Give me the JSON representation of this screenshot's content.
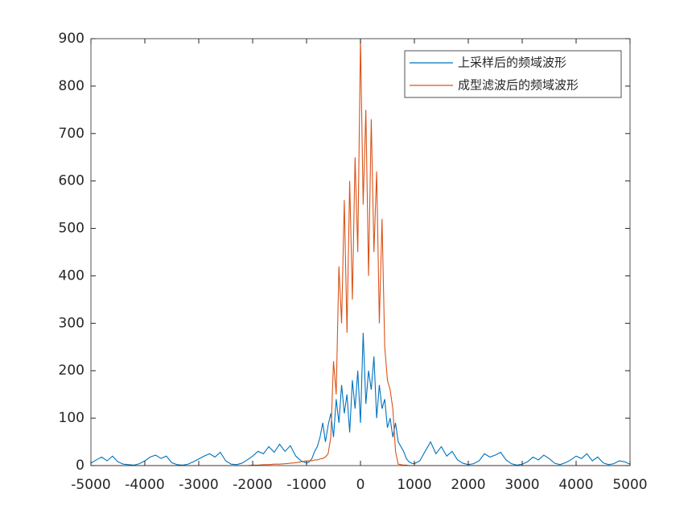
{
  "chart_data": {
    "type": "line",
    "x": [
      -5000,
      -4900,
      -4800,
      -4700,
      -4600,
      -4500,
      -4400,
      -4300,
      -4200,
      -4100,
      -4000,
      -3900,
      -3800,
      -3700,
      -3600,
      -3500,
      -3400,
      -3300,
      -3200,
      -3100,
      -3000,
      -2900,
      -2800,
      -2700,
      -2600,
      -2500,
      -2400,
      -2300,
      -2200,
      -2100,
      -2000,
      -1900,
      -1800,
      -1700,
      -1600,
      -1500,
      -1400,
      -1300,
      -1200,
      -1100,
      -1000,
      -950,
      -900,
      -850,
      -800,
      -750,
      -700,
      -650,
      -600,
      -550,
      -500,
      -450,
      -400,
      -350,
      -300,
      -250,
      -200,
      -150,
      -100,
      -50,
      0,
      50,
      100,
      150,
      200,
      250,
      300,
      350,
      400,
      450,
      500,
      550,
      600,
      650,
      700,
      750,
      800,
      850,
      900,
      950,
      1000,
      1100,
      1200,
      1300,
      1400,
      1500,
      1600,
      1700,
      1800,
      1900,
      2000,
      2100,
      2200,
      2300,
      2400,
      2500,
      2600,
      2700,
      2800,
      2900,
      3000,
      3100,
      3200,
      3300,
      3400,
      3500,
      3600,
      3700,
      3800,
      3900,
      4000,
      4100,
      4200,
      4300,
      4400,
      4500,
      4600,
      4700,
      4800,
      4900,
      5000
    ],
    "series": [
      {
        "name": "上采样后的频域波形",
        "color": "#0072BD",
        "values": [
          5,
          12,
          18,
          10,
          20,
          8,
          3,
          2,
          1,
          4,
          10,
          18,
          22,
          15,
          20,
          6,
          2,
          1,
          3,
          8,
          14,
          20,
          25,
          18,
          28,
          10,
          3,
          2,
          5,
          12,
          20,
          30,
          25,
          40,
          28,
          45,
          30,
          42,
          20,
          10,
          5,
          8,
          15,
          30,
          40,
          60,
          90,
          50,
          85,
          110,
          60,
          140,
          90,
          170,
          110,
          150,
          70,
          180,
          120,
          200,
          90,
          280,
          130,
          200,
          160,
          230,
          100,
          170,
          120,
          140,
          80,
          100,
          60,
          90,
          50,
          40,
          30,
          15,
          8,
          5,
          4,
          10,
          30,
          50,
          25,
          40,
          20,
          30,
          12,
          5,
          2,
          4,
          10,
          25,
          18,
          22,
          28,
          12,
          4,
          1,
          3,
          8,
          18,
          12,
          22,
          15,
          5,
          2,
          6,
          12,
          20,
          15,
          25,
          10,
          18,
          6,
          2,
          4,
          10,
          8,
          3
        ]
      },
      {
        "name": "成型滤波后的频域波形",
        "color": "#D95319",
        "values": [
          0,
          0,
          0,
          0,
          0,
          0,
          0,
          0,
          0,
          0,
          0,
          0,
          0,
          0,
          0,
          0,
          0,
          0,
          0,
          0,
          0,
          0,
          0,
          0,
          0,
          0,
          0,
          0,
          0,
          0,
          1,
          1,
          2,
          2,
          3,
          3,
          4,
          5,
          6,
          8,
          10,
          10,
          10,
          12,
          12,
          14,
          15,
          18,
          25,
          60,
          220,
          150,
          420,
          300,
          560,
          280,
          600,
          350,
          650,
          450,
          900,
          550,
          750,
          400,
          730,
          450,
          620,
          300,
          520,
          250,
          180,
          160,
          120,
          30,
          3,
          2,
          1,
          1,
          0,
          0,
          0,
          0,
          0,
          0,
          0,
          0,
          0,
          0,
          0,
          0,
          0,
          0,
          0,
          0,
          0,
          0,
          0,
          0,
          0,
          0,
          0,
          0,
          0,
          0,
          0,
          0,
          0,
          0,
          0,
          0,
          0,
          0,
          0,
          0,
          0,
          0,
          0,
          0,
          0,
          0,
          0
        ]
      }
    ],
    "xlim": [
      -5000,
      5000
    ],
    "xticks": [
      -5000,
      -4000,
      -3000,
      -2000,
      -1000,
      0,
      1000,
      2000,
      3000,
      4000,
      5000
    ],
    "ylim": [
      0,
      900
    ],
    "yticks": [
      0,
      100,
      200,
      300,
      400,
      500,
      600,
      700,
      800,
      900
    ],
    "legend": "upper right"
  }
}
